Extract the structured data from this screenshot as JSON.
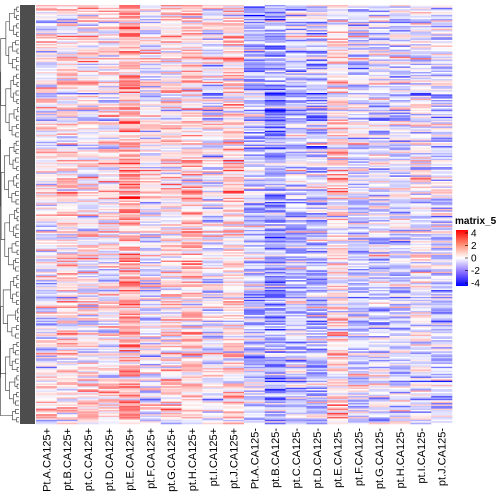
{
  "chart_data": {
    "type": "heatmap",
    "columns": [
      "Pt.A.CA125+",
      "pt.B.CA125+",
      "pt.C.CA125+",
      "pt.D.CA125+",
      "pt.E.CA125+",
      "pt.F.CA125+",
      "pt.G.CA125+",
      "pt.H.CA125+",
      "pt.I.CA125+",
      "pt.J.CA125+",
      "Pt.A.CA125-",
      "pt.B.CA125-",
      "pt.C.CA125-",
      "pt.D.CA125-",
      "pt.E.CA125-",
      "pt.F.CA125-",
      "pt.G.CA125-",
      "pt.H.CA125-",
      "pt.I.CA125-",
      "pt.J.CA125-"
    ],
    "row_count": 300,
    "value_range": [
      -4,
      4
    ],
    "row_clustering": "dendrogram-left",
    "row_annotation": "dark-grey side bar",
    "legend": {
      "title": "matrix_5",
      "ticks": [
        "4",
        "2",
        "0",
        "-2",
        "-4"
      ],
      "placement": "right",
      "colors": {
        "high": "#ff0000",
        "mid": "#ffffff",
        "low": "#0000ff"
      }
    },
    "column_trends": [
      0.1,
      0.4,
      0.2,
      0.2,
      1.3,
      0.0,
      0.5,
      0.8,
      -0.1,
      0.6,
      -0.9,
      -1.4,
      -0.8,
      -0.8,
      0.5,
      -0.5,
      -0.4,
      -0.6,
      -0.2,
      -0.5
    ]
  }
}
